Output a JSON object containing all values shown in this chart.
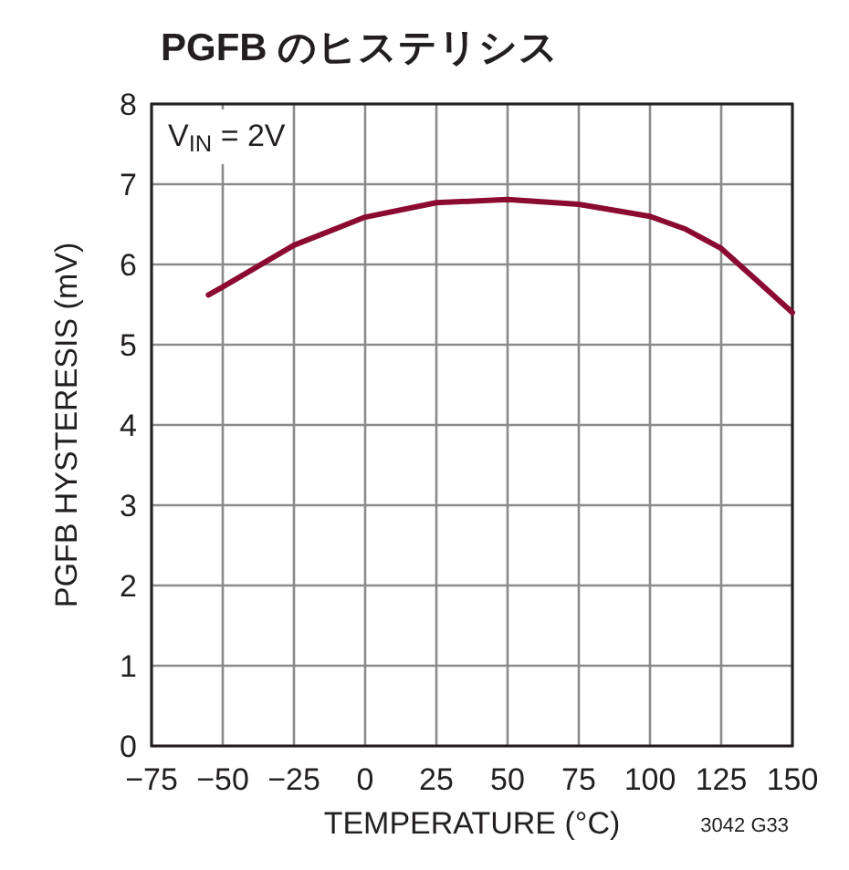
{
  "chart_data": {
    "type": "line",
    "title": "PGFB のヒステリシス",
    "xlabel": "TEMPERATURE (°C)",
    "ylabel": "PGFB HYSTERESIS (mV)",
    "x": [
      -55,
      -50,
      -25,
      0,
      25,
      50,
      75,
      100,
      112.5,
      125,
      137.5,
      150
    ],
    "series": [
      {
        "color": "#8b0a32",
        "values": [
          5.62,
          5.72,
          6.24,
          6.59,
          6.77,
          6.81,
          6.75,
          6.6,
          6.44,
          6.2,
          5.8,
          5.4
        ]
      }
    ],
    "xlim": [
      -75,
      150
    ],
    "xticks": [
      -75,
      -50,
      -25,
      0,
      25,
      50,
      75,
      100,
      125,
      150
    ],
    "ylim": [
      0,
      8
    ],
    "yticks": [
      0,
      1,
      2,
      3,
      4,
      5,
      6,
      7,
      8
    ],
    "grid": true,
    "marker": "none",
    "line_style": "solid",
    "annotations": [
      "V$_{IN}$ = 2V",
      "3042 G33"
    ]
  }
}
